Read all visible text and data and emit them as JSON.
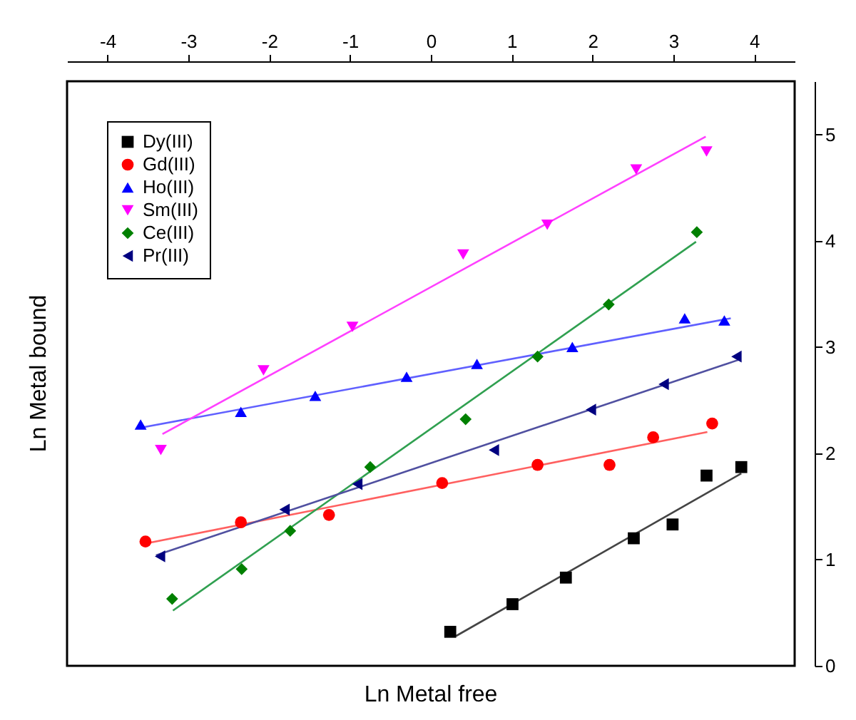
{
  "chart_data": {
    "type": "scatter",
    "xlabel": "Ln Metal free",
    "ylabel": "Ln Metal bound",
    "xlim": [
      -4.5,
      4.5
    ],
    "ylim": [
      0,
      5.5
    ],
    "xticks": [
      -4,
      -3,
      -2,
      -1,
      0,
      1,
      2,
      3,
      4
    ],
    "yticks": [
      0,
      1,
      2,
      3,
      4,
      5
    ],
    "grid": false,
    "legend": "top left",
    "series": [
      {
        "name": "Dy(III)",
        "color": "#000000",
        "marker": "square",
        "x": [
          0.24,
          1.01,
          1.67,
          2.51,
          2.99,
          3.41,
          3.84
        ],
        "values": [
          0.32,
          0.58,
          0.83,
          1.2,
          1.33,
          1.79,
          1.87
        ]
      },
      {
        "name": "Gd(III)",
        "color": "#ff0000",
        "marker": "circle",
        "x": [
          -3.53,
          -2.35,
          -1.26,
          0.14,
          1.32,
          2.21,
          2.75,
          3.48
        ],
        "values": [
          1.17,
          1.35,
          1.42,
          1.72,
          1.89,
          1.89,
          2.15,
          2.28
        ]
      },
      {
        "name": "Ho(III)",
        "color": "#0000ff",
        "marker": "triangle",
        "x": [
          -3.59,
          -2.35,
          -1.43,
          -0.3,
          0.57,
          1.75,
          3.14,
          3.63
        ],
        "values": [
          2.27,
          2.39,
          2.54,
          2.72,
          2.84,
          3.0,
          3.27,
          3.25
        ]
      },
      {
        "name": "Sm(III)",
        "color": "#ff00ff",
        "marker": "triangle-down",
        "x": [
          -3.34,
          -2.07,
          -0.97,
          0.4,
          1.44,
          2.54,
          3.41
        ],
        "values": [
          2.03,
          2.78,
          3.19,
          3.87,
          4.15,
          4.67,
          4.84
        ]
      },
      {
        "name": "Ce(III)",
        "color": "#008000",
        "marker": "diamond",
        "x": [
          -3.2,
          -2.34,
          -1.74,
          -0.75,
          0.43,
          1.32,
          2.2,
          3.29
        ],
        "values": [
          0.63,
          0.91,
          1.27,
          1.87,
          2.32,
          2.91,
          3.4,
          4.08
        ]
      },
      {
        "name": "Pr(III)",
        "color": "#000080",
        "marker": "triangle-left",
        "x": [
          -3.35,
          -1.81,
          -0.91,
          0.78,
          1.98,
          2.88,
          3.78
        ],
        "values": [
          1.03,
          1.47,
          1.71,
          2.03,
          2.41,
          2.65,
          2.91
        ]
      },
      {
        "type": "line",
        "color": "#444444",
        "x": [
          0.31,
          3.84
        ],
        "values": [
          0.28,
          1.81
        ]
      },
      {
        "type": "line",
        "color": "#ff6060",
        "x": [
          -3.53,
          3.42
        ],
        "values": [
          1.15,
          2.2
        ]
      },
      {
        "type": "line",
        "color": "#6060ff",
        "x": [
          -3.59,
          3.71
        ],
        "values": [
          2.24,
          3.27
        ]
      },
      {
        "type": "line",
        "color": "#ff40ff",
        "x": [
          -3.32,
          3.4
        ],
        "values": [
          2.18,
          4.98
        ]
      },
      {
        "type": "line",
        "color": "#30a050",
        "x": [
          -3.19,
          3.28
        ],
        "values": [
          0.52,
          3.99
        ]
      },
      {
        "type": "line",
        "color": "#5050a0",
        "x": [
          -3.4,
          3.81
        ],
        "values": [
          1.04,
          2.88
        ]
      }
    ]
  }
}
